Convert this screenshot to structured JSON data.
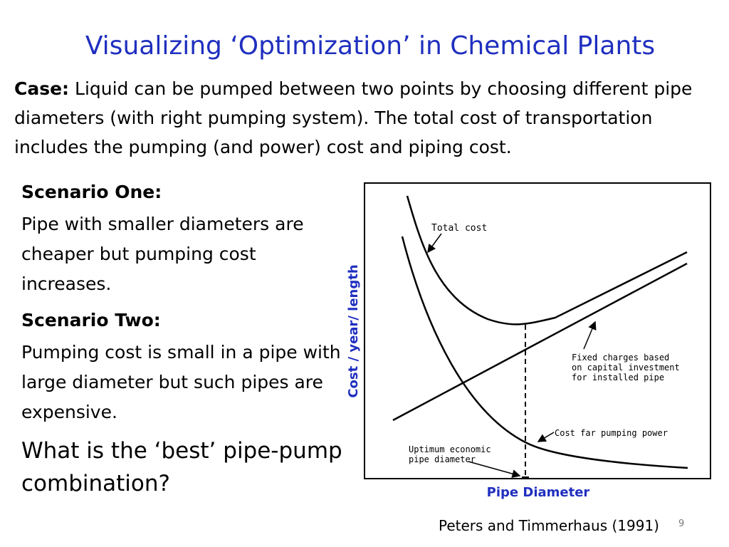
{
  "slide": {
    "title": "Visualizing ‘Optimization’ in Chemical Plants",
    "case_label": "Case:",
    "case_text": " Liquid can be pumped between two points by choosing different pipe diameters (with right pumping system). The total cost of transportation includes the pumping (and power) cost and piping cost.",
    "scenario_one_title": "Scenario One:",
    "scenario_one_text": "Pipe with smaller diameters are cheaper but pumping cost increases.",
    "scenario_two_title": "Scenario Two:",
    "scenario_two_text": "Pumping cost is small in a pipe with large diameter but such pipes are expensive.",
    "question": "What is the ‘best’ pipe-pump combination?",
    "reference": "Peters and Timmerhaus (1991)",
    "page_number": "9"
  },
  "diagram": {
    "y_axis_label": "Cost / year/ length",
    "x_axis_label": "Pipe Diameter",
    "total_cost_label": "Total cost",
    "fixed_charges_line1": "Fixed charges based",
    "fixed_charges_line2": "on capital investment",
    "fixed_charges_line3": "for installed pipe",
    "pumping_label": "Cost far pumping power",
    "optimum_line1": "Uptimum economic",
    "optimum_line2": "pipe diameter"
  },
  "colors": {
    "title": "#1f2fbf",
    "axis_labels": "#1f2fbf",
    "text": "#000000"
  }
}
